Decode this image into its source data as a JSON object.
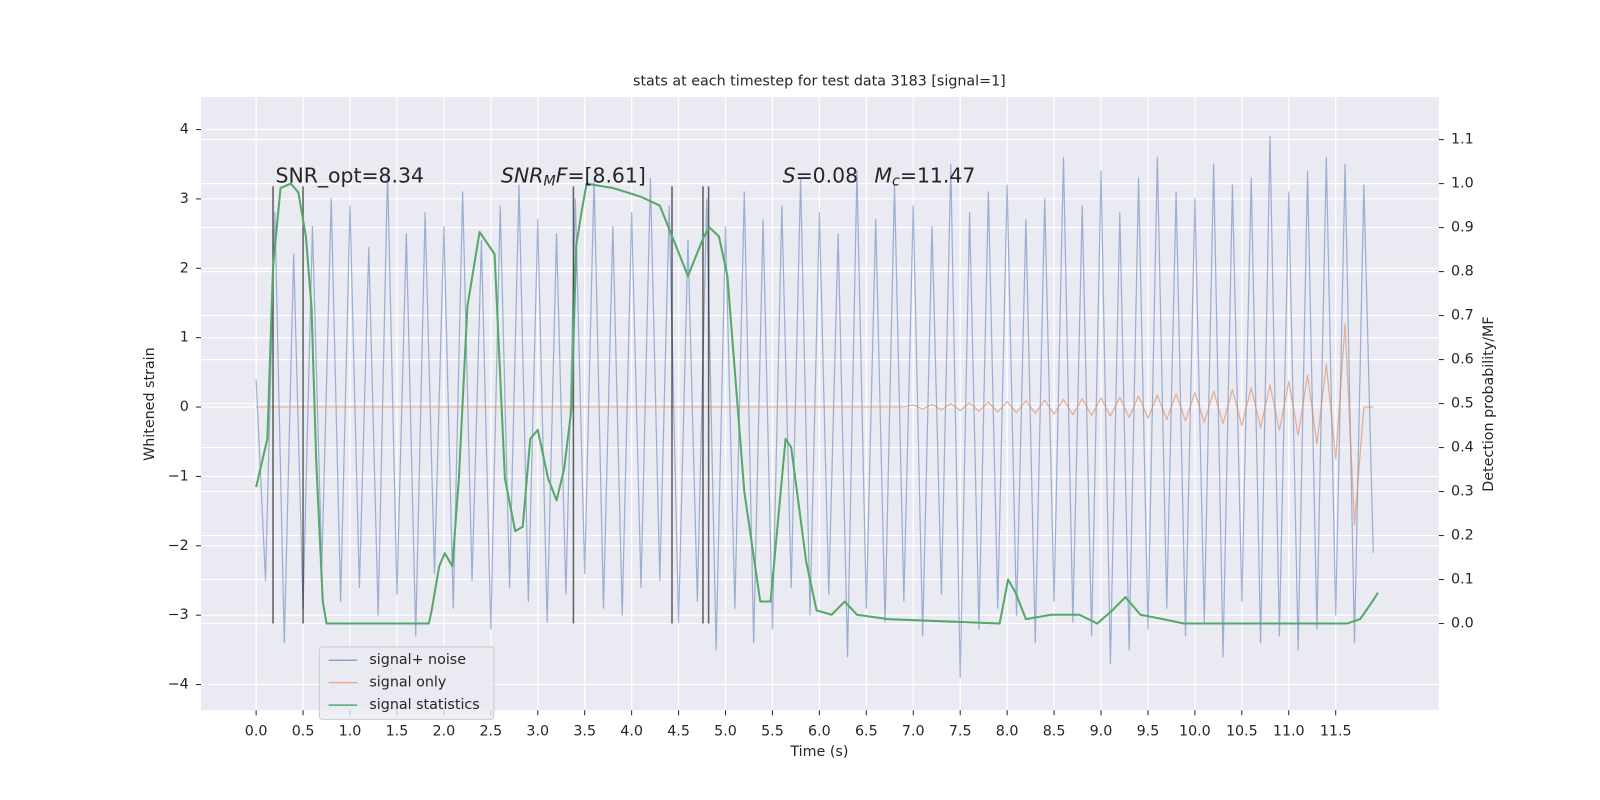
{
  "chart_data": {
    "type": "line",
    "title": "stats at each timestep for test data 3183 [signal=1]",
    "x_label": "Time (s)",
    "y_label": "Whitened strain",
    "y2_label": "Detection probability/MF",
    "xlim": [
      -0.587,
      12.598
    ],
    "ylim": [
      -4.37,
      4.47
    ],
    "y2lim": [
      -0.197,
      1.197
    ],
    "xticks": [
      {
        "value": 0,
        "label": "0.0"
      },
      0.5,
      {
        "value": 1,
        "label": "1.0"
      },
      1.5,
      {
        "value": 2,
        "label": "2.0"
      },
      2.5,
      {
        "value": 3,
        "label": "3.0"
      },
      3.5,
      {
        "value": 4,
        "label": "4.0"
      },
      4.5,
      {
        "value": 5,
        "label": "5.0"
      },
      5.5,
      {
        "value": 6,
        "label": "6.0"
      },
      6.5,
      {
        "value": 7,
        "label": "7.0"
      },
      7.5,
      {
        "value": 8,
        "label": "8.0"
      },
      8.5,
      {
        "value": 9,
        "label": "9.0"
      },
      9.5,
      {
        "value": 10,
        "label": "10.0"
      },
      10.5,
      {
        "value": 11,
        "label": "11.0"
      },
      11.5
    ],
    "yticks": [
      {
        "value": -4,
        "label": "−4"
      },
      {
        "value": -3,
        "label": "−3"
      },
      {
        "value": -2,
        "label": "−2"
      },
      {
        "value": -1,
        "label": "−1"
      },
      0,
      1,
      2,
      3,
      4
    ],
    "y2ticks": [
      {
        "value": 0,
        "label": "0.0"
      },
      0.1,
      0.2,
      0.3,
      0.4,
      0.5,
      0.6,
      0.7,
      0.8,
      0.9,
      {
        "value": 1,
        "label": "1.0"
      },
      1.1
    ],
    "grid": true,
    "legend": "lower left",
    "series": [
      {
        "name": "signal+ noise",
        "color": "#4c72b0",
        "x": [
          0,
          0.1,
          0.2,
          0.3,
          0.4,
          0.5,
          0.6,
          0.7,
          0.8,
          0.9,
          1,
          1.1,
          1.2,
          1.3,
          1.4,
          1.5,
          1.6,
          1.7,
          1.8,
          1.9,
          2,
          2.1,
          2.2,
          2.3,
          2.4,
          2.5,
          2.6,
          2.7,
          2.8,
          2.9,
          3,
          3.1,
          3.2,
          3.3,
          3.4,
          3.5,
          3.6,
          3.7,
          3.8,
          3.9,
          4,
          4.1,
          4.2,
          4.3,
          4.4,
          4.5,
          4.6,
          4.7,
          4.8,
          4.9,
          5,
          5.1,
          5.2,
          5.3,
          5.4,
          5.5,
          5.6,
          5.7,
          5.8,
          5.9,
          6,
          6.1,
          6.2,
          6.3,
          6.4,
          6.5,
          6.6,
          6.7,
          6.8,
          6.9,
          7,
          7.1,
          7.2,
          7.3,
          7.4,
          7.5,
          7.6,
          7.7,
          7.8,
          7.9,
          8,
          8.1,
          8.2,
          8.3,
          8.4,
          8.5,
          8.6,
          8.7,
          8.8,
          8.9,
          9,
          9.1,
          9.2,
          9.3,
          9.4,
          9.5,
          9.6,
          9.7,
          9.8,
          9.9,
          10,
          10.1,
          10.2,
          10.3,
          10.4,
          10.5,
          10.6,
          10.7,
          10.8,
          10.9,
          11,
          11.1,
          11.2,
          11.3,
          11.4,
          11.5,
          11.6,
          11.7,
          11.8,
          11.9
        ],
        "values": [
          0.4,
          -2.5,
          2.8,
          -3.4,
          2.2,
          -2.9,
          2.6,
          -2.3,
          3.0,
          -2.8,
          2.9,
          -2.6,
          2.3,
          -3.0,
          3.4,
          -2.7,
          2.5,
          -3.3,
          2.8,
          -2.4,
          2.6,
          -2.9,
          3.1,
          -2.5,
          2.4,
          -3.2,
          2.9,
          -2.6,
          3.2,
          -2.8,
          2.7,
          -3.1,
          2.5,
          -2.7,
          3.0,
          -2.4,
          3.3,
          -2.9,
          2.6,
          -3.0,
          2.8,
          -2.6,
          3.3,
          -2.5,
          2.9,
          -3.1,
          2.4,
          -2.8,
          3.0,
          -3.5,
          2.6,
          -2.9,
          3.1,
          -3.4,
          2.7,
          -3.2,
          2.9,
          -2.6,
          3.3,
          -3.0,
          2.8,
          -2.7,
          2.5,
          -3.6,
          3.4,
          -2.9,
          2.7,
          -3.1,
          3.2,
          -2.8,
          2.9,
          -3.3,
          2.6,
          -2.7,
          3.5,
          -3.9,
          2.8,
          -3.2,
          3.1,
          -2.9,
          3.2,
          -3.0,
          2.7,
          -3.4,
          3.0,
          -2.8,
          3.6,
          -3.1,
          2.9,
          -3.3,
          3.4,
          -3.7,
          2.8,
          -3.5,
          3.3,
          -3.2,
          3.6,
          -2.9,
          3.1,
          -3.3,
          3.0,
          -3.1,
          3.5,
          -3.6,
          3.2,
          -2.8,
          3.3,
          -3.4,
          3.9,
          -3.3,
          3.1,
          -3.5,
          3.4,
          -3.2,
          3.6,
          -3.0,
          3.5,
          -3.4,
          3.2,
          -2.1
        ]
      },
      {
        "name": "signal only",
        "color": "#dd8452",
        "x": [
          0,
          0.1,
          0.2,
          0.3,
          0.4,
          0.5,
          0.6,
          0.7,
          0.8,
          0.9,
          1,
          1.1,
          1.2,
          1.3,
          1.4,
          1.5,
          1.6,
          1.7,
          1.8,
          1.9,
          2,
          2.1,
          2.2,
          2.3,
          2.4,
          2.5,
          2.6,
          2.7,
          2.8,
          2.9,
          3,
          3.1,
          3.2,
          3.3,
          3.4,
          3.5,
          3.6,
          3.7,
          3.8,
          3.9,
          4,
          4.1,
          4.2,
          4.3,
          4.4,
          4.5,
          4.6,
          4.7,
          4.8,
          4.9,
          5,
          5.1,
          5.2,
          5.3,
          5.4,
          5.5,
          5.6,
          5.7,
          5.8,
          5.9,
          6,
          6.1,
          6.2,
          6.3,
          6.4,
          6.5,
          6.6,
          6.7,
          6.8,
          6.9,
          7,
          7.1,
          7.2,
          7.3,
          7.4,
          7.5,
          7.6,
          7.7,
          7.8,
          7.9,
          8,
          8.1,
          8.2,
          8.3,
          8.4,
          8.5,
          8.6,
          8.7,
          8.8,
          8.9,
          9,
          9.1,
          9.2,
          9.3,
          9.4,
          9.5,
          9.6,
          9.7,
          9.8,
          9.9,
          10,
          10.1,
          10.2,
          10.3,
          10.4,
          10.5,
          10.6,
          10.7,
          10.8,
          10.9,
          11,
          11.1,
          11.2,
          11.3,
          11.4,
          11.5,
          11.6,
          11.7,
          11.8,
          11.9
        ],
        "values": [
          0,
          0,
          0,
          0,
          0,
          0,
          0,
          0,
          0,
          0,
          0,
          0,
          0,
          0,
          0,
          0,
          0,
          0,
          0,
          0,
          0,
          0,
          0,
          0,
          0,
          0,
          0,
          0,
          0,
          0,
          0,
          0,
          0,
          0,
          0,
          0,
          0,
          0,
          0,
          0,
          0,
          0,
          0,
          0,
          0,
          0,
          0,
          0,
          0,
          0,
          0,
          0,
          0,
          0,
          0,
          0,
          0,
          0,
          0,
          0,
          0,
          0,
          0,
          0,
          0,
          0,
          0,
          0,
          0,
          0,
          0.03,
          -0.03,
          0.04,
          -0.04,
          0.05,
          -0.05,
          0.06,
          -0.06,
          0.07,
          -0.07,
          0.08,
          -0.08,
          0.09,
          -0.09,
          0.1,
          -0.1,
          0.11,
          -0.11,
          0.12,
          -0.12,
          0.13,
          -0.13,
          0.14,
          -0.15,
          0.16,
          -0.16,
          0.17,
          -0.18,
          0.19,
          -0.2,
          0.21,
          -0.22,
          0.23,
          -0.24,
          0.25,
          -0.27,
          0.28,
          -0.3,
          0.32,
          -0.34,
          0.37,
          -0.41,
          0.46,
          -0.53,
          0.62,
          -0.75,
          1.2,
          -1.7,
          0,
          0
        ]
      },
      {
        "name": "signal statistics",
        "color": "#55a868",
        "axis": "y2",
        "x": [
          0,
          0.12,
          0.18,
          0.26,
          0.37,
          0.45,
          0.53,
          0.59,
          0.64,
          0.71,
          0.75,
          1.4,
          1.73,
          1.84,
          1.87,
          1.95,
          2.01,
          2.09,
          2.16,
          2.25,
          2.38,
          2.54,
          2.65,
          2.76,
          2.84,
          2.92,
          3,
          3.11,
          3.2,
          3.28,
          3.36,
          3.41,
          3.47,
          3.52,
          3.8,
          4.1,
          4.3,
          4.45,
          4.6,
          4.77,
          4.83,
          4.93,
          5.02,
          5.2,
          5.37,
          5.48,
          5.64,
          5.7,
          5.86,
          5.97,
          6.13,
          6.27,
          6.4,
          6.73,
          7.92,
          8.01,
          8.09,
          8.2,
          8.47,
          8.77,
          8.96,
          9.12,
          9.26,
          9.42,
          9.66,
          9.88,
          11.62,
          11.76,
          11.89,
          11.95
        ],
        "values": [
          0.31,
          0.42,
          0.81,
          0.99,
          1.0,
          0.98,
          0.88,
          0.72,
          0.37,
          0.05,
          0.0,
          0.0,
          0.0,
          0.0,
          0.03,
          0.13,
          0.16,
          0.13,
          0.33,
          0.72,
          0.89,
          0.84,
          0.33,
          0.21,
          0.22,
          0.42,
          0.44,
          0.33,
          0.28,
          0.35,
          0.49,
          0.86,
          0.94,
          1.0,
          0.99,
          0.97,
          0.95,
          0.87,
          0.79,
          0.88,
          0.9,
          0.88,
          0.79,
          0.3,
          0.05,
          0.05,
          0.42,
          0.4,
          0.14,
          0.03,
          0.02,
          0.05,
          0.02,
          0.01,
          0.0,
          0.1,
          0.07,
          0.01,
          0.02,
          0.02,
          0.0,
          0.03,
          0.06,
          0.02,
          0.01,
          0.0,
          0.0,
          0.01,
          0.05,
          0.07
        ]
      }
    ],
    "vlines": {
      "color": "#000000",
      "x": [
        0.18,
        0.5,
        3.38,
        4.43,
        4.76,
        4.82
      ],
      "y_range": [
        -3.12,
        3.18
      ]
    },
    "annotations": [
      [
        {
          "text": "SNR_opt=8.34"
        }
      ],
      [
        {
          "text": "SNR",
          "italic": true
        },
        {
          "text": "M",
          "italic": true,
          "sub": true
        },
        {
          "text": "F",
          "italic": true
        },
        {
          "text": "=[8.61]"
        }
      ],
      [
        {
          "text": "S",
          "italic": true
        },
        {
          "text": "=0.08"
        },
        {
          "text": "M",
          "italic": true
        },
        {
          "text": "c",
          "italic": true,
          "sub": true
        },
        {
          "text": "=11.47"
        }
      ]
    ]
  }
}
